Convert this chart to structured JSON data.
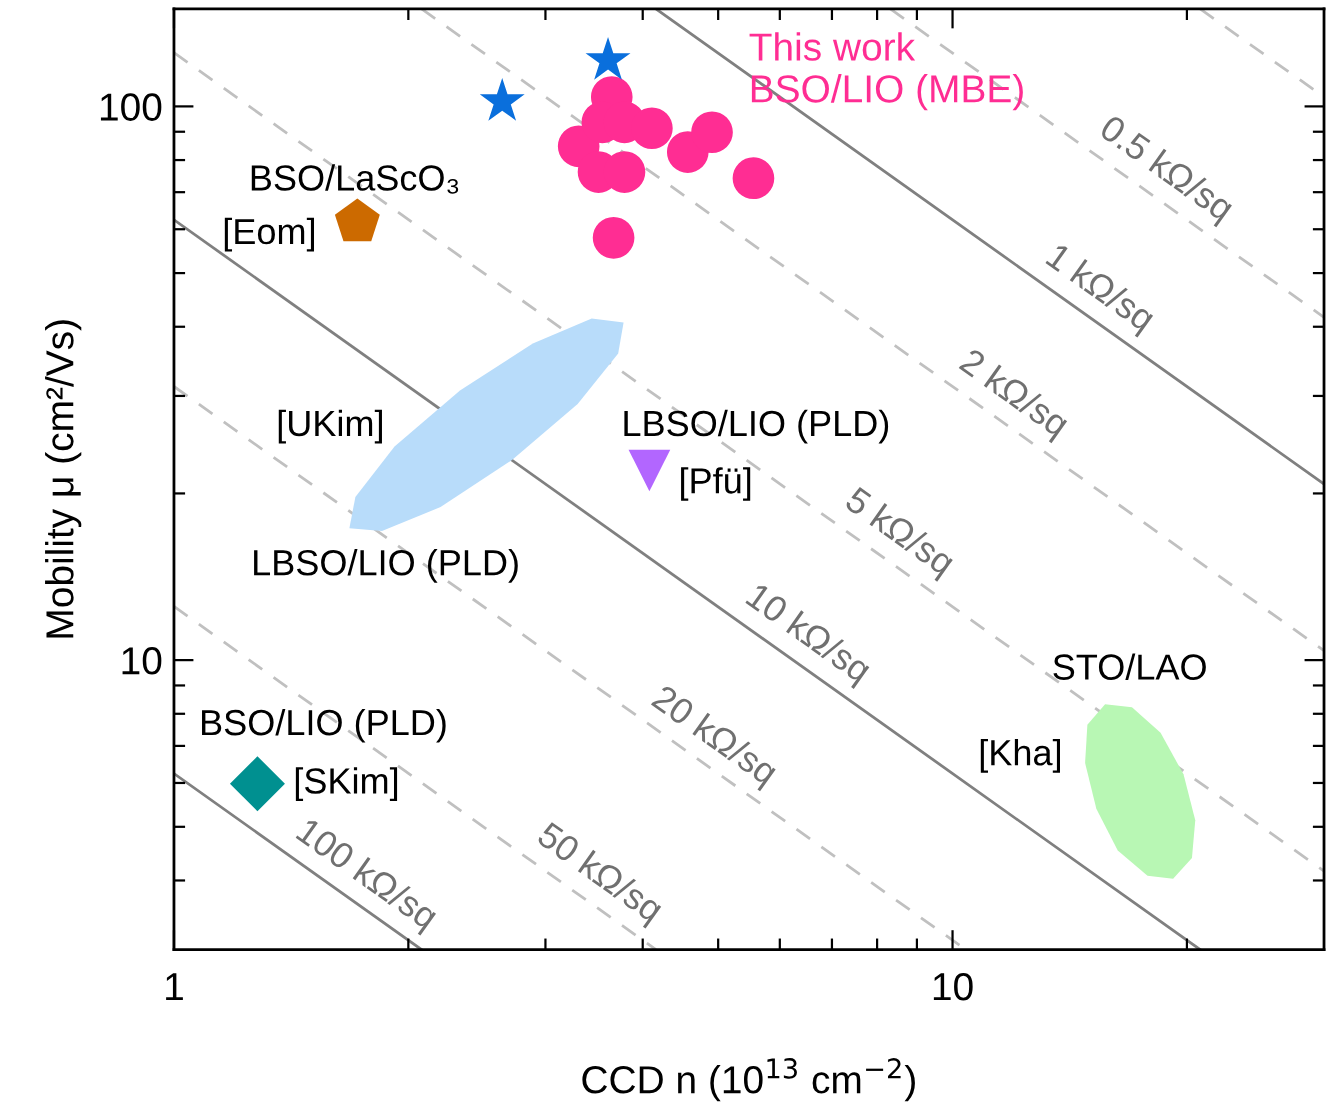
{
  "chart_data": {
    "type": "scatter",
    "xlabel": "CCD n (10$^{13}$ cm$^{−2}$)",
    "ylabel": "Mobility μ (cm²/Vs)",
    "log": "xy",
    "xlim": [
      1,
      30
    ],
    "ylim": [
      3,
      150
    ],
    "xticks": [
      1,
      {
        "value": 2,
        "label": null
      },
      {
        "value": 3,
        "label": null
      },
      {
        "value": 4,
        "label": null
      },
      {
        "value": 5,
        "label": null
      },
      {
        "value": 6,
        "label": null
      },
      {
        "value": 7,
        "label": null
      },
      {
        "value": 8,
        "label": null
      },
      {
        "value": 9,
        "label": null
      },
      10,
      {
        "value": 20,
        "label": null
      }
    ],
    "yticks": [
      {
        "value": 4,
        "label": null
      },
      {
        "value": 5,
        "label": null
      },
      {
        "value": 6,
        "label": null
      },
      {
        "value": 7,
        "label": null
      },
      {
        "value": 8,
        "label": null
      },
      {
        "value": 9,
        "label": null
      },
      10,
      {
        "value": 20,
        "label": null
      },
      {
        "value": 30,
        "label": null
      },
      {
        "value": 40,
        "label": null
      },
      {
        "value": 50,
        "label": null
      },
      {
        "value": 60,
        "label": null
      },
      {
        "value": 70,
        "label": null
      },
      {
        "value": 80,
        "label": null
      },
      {
        "value": 90,
        "label": null
      },
      100
    ],
    "grid": false,
    "legend": "top",
    "series": [
      {
        "type": "line",
        "color": "#c0c0c0",
        "line_style": "dashed",
        "marker": "none",
        "x": [
          20.8,
          30
        ],
        "values": [
          150,
          104
        ]
      },
      {
        "type": "line",
        "color": "#c0c0c0",
        "line_style": "dashed",
        "marker": "none",
        "x": [
          8.32,
          30
        ],
        "values": [
          150,
          41.6
        ]
      },
      {
        "type": "line",
        "color": "#808080",
        "line_style": "solid",
        "marker": "none",
        "x": [
          4.16,
          30
        ],
        "values": [
          150,
          20.8
        ]
      },
      {
        "type": "line",
        "color": "#c0c0c0",
        "line_style": "dashed",
        "marker": "none",
        "x": [
          2.08,
          30
        ],
        "values": [
          150,
          10.4
        ]
      },
      {
        "type": "line",
        "color": "#c0c0c0",
        "line_style": "dashed",
        "marker": "none",
        "x": [
          1,
          30
        ],
        "values": [
          125,
          4.16
        ]
      },
      {
        "type": "line",
        "color": "#808080",
        "line_style": "solid",
        "marker": "none",
        "x": [
          1,
          20.8
        ],
        "values": [
          62.4,
          3
        ]
      },
      {
        "type": "line",
        "color": "#c0c0c0",
        "line_style": "dashed",
        "marker": "none",
        "x": [
          1,
          10.4
        ],
        "values": [
          31.2,
          3
        ]
      },
      {
        "type": "line",
        "color": "#c0c0c0",
        "line_style": "dashed",
        "marker": "none",
        "x": [
          1,
          4.16
        ],
        "values": [
          12.5,
          3
        ]
      },
      {
        "type": "line",
        "color": "#808080",
        "line_style": "solid",
        "marker": "none",
        "x": [
          1,
          2.08
        ],
        "values": [
          6.24,
          3
        ]
      },
      {
        "type": "area",
        "color": "#b8dcfa",
        "x": [
          3.78,
          3.72,
          3.3,
          2.72,
          2.2,
          1.85,
          1.68,
          1.71,
          1.92,
          2.33,
          2.89,
          3.44
        ],
        "values": [
          40.7,
          35.8,
          29.0,
          23.0,
          18.9,
          17.1,
          17.3,
          19.7,
          24.3,
          30.7,
          37.3,
          41.4
        ]
      },
      {
        "type": "area",
        "color": "#b8f7b4",
        "x": [
          19.2,
          20.3,
          20.5,
          19.8,
          18.5,
          17.0,
          15.7,
          14.9,
          14.8,
          15.3,
          16.3,
          17.8
        ],
        "values": [
          4.03,
          4.39,
          5.14,
          6.22,
          7.39,
          8.22,
          8.32,
          7.64,
          6.52,
          5.39,
          4.53,
          4.08
        ]
      },
      {
        "type": "scatter",
        "color": "#ff2d93",
        "marker": "circle",
        "name": "This work\nBSO/LIO (MBE)",
        "x": [
          3.31,
          3.65,
          3.55,
          3.79,
          4.11,
          3.51,
          3.79,
          4.57,
          4.91,
          3.67,
          5.55
        ],
        "values": [
          84.7,
          104,
          93.6,
          93.6,
          91.3,
          76.1,
          76.1,
          82.7,
          89.8,
          57.9,
          74.2
        ]
      },
      {
        "type": "scatter",
        "color": "#0a6fdc",
        "marker": "star",
        "x": [
          2.64,
          3.61
        ],
        "values": [
          102,
          121
        ]
      },
      {
        "type": "scatter",
        "color": "#cc6a00",
        "x": [
          1.72
        ],
        "values": [
          61.8
        ]
      },
      {
        "type": "scatter",
        "color": "#b266ff",
        "marker": "triangle",
        "x": [
          4.08
        ],
        "values": [
          22.0
        ]
      },
      {
        "type": "scatter",
        "color": "#009090",
        "marker": "diamond",
        "x": [
          1.28
        ],
        "values": [
          5.98
        ]
      }
    ],
    "annotations": [
      {
        "text": "0.5 kΩ/sq",
        "x": 17.9,
        "y": 69.7
      },
      {
        "text": "1 kΩ/sq",
        "x": 14.7,
        "y": 42.5
      },
      {
        "text": "2 kΩ/sq",
        "x": 11.4,
        "y": 27.4
      },
      {
        "text": "5 kΩ/sq",
        "x": 8.13,
        "y": 15.4
      },
      {
        "text": "10 kΩ/sq",
        "x": 6.2,
        "y": 10.1
      },
      {
        "text": "20 kΩ/sq",
        "x": 4.7,
        "y": 6.6
      },
      {
        "text": "50 kΩ/sq",
        "x": 3.35,
        "y": 3.73
      },
      {
        "text": "100 kΩ/sq",
        "x": 1.68,
        "y": 3.71
      },
      "BSO/LaScO₃",
      "[Eom]",
      "[UKim]",
      "LBSO/LIO (PLD)",
      "LBSO/LIO (PLD)",
      "[Pfü]",
      "STO/LAO",
      "[Kha]",
      "BSO/LIO (PLD)",
      "[SKim]"
    ]
  }
}
